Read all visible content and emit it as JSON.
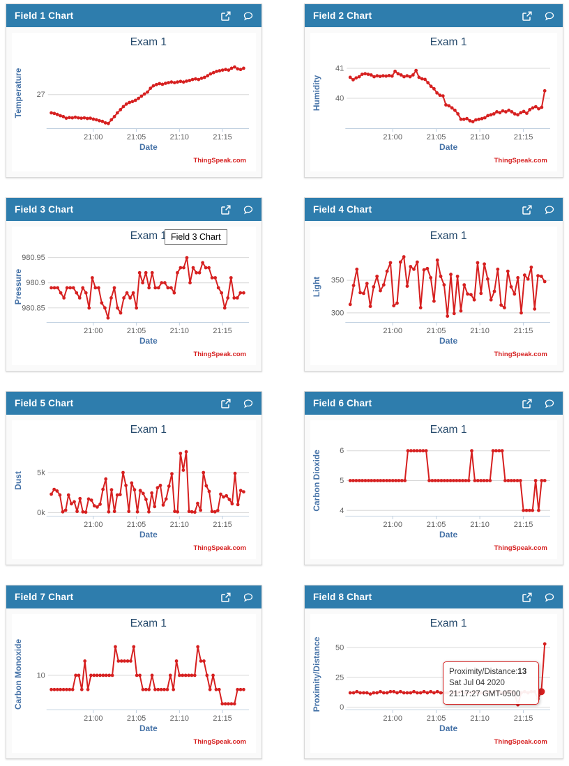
{
  "colors": {
    "header_blue": "#2e7dad",
    "series_red": "#d62020",
    "chart_title_navy": "#25496b",
    "axis_label_blue": "#4572a7",
    "tick_gray": "#606060",
    "gridline_gray": "#d8d8d8",
    "axis_line": "#c0d0e0"
  },
  "cards": [
    {
      "title": "Field 1 Chart",
      "icons": [
        "external-link-icon",
        "comment-icon"
      ]
    },
    {
      "title": "Field 2 Chart",
      "icons": [
        "external-link-icon",
        "comment-icon"
      ]
    },
    {
      "title": "Field 3 Chart",
      "icons": [
        "external-link-icon",
        "comment-icon"
      ],
      "hover_tooltip": {
        "type": "native",
        "text": "Field 3 Chart"
      }
    },
    {
      "title": "Field 4 Chart",
      "icons": [
        "external-link-icon",
        "comment-icon"
      ]
    },
    {
      "title": "Field 5 Chart",
      "icons": [
        "external-link-icon",
        "comment-icon"
      ]
    },
    {
      "title": "Field 6 Chart",
      "icons": [
        "external-link-icon",
        "comment-icon"
      ]
    },
    {
      "title": "Field 7 Chart",
      "icons": [
        "external-link-icon",
        "comment-icon"
      ]
    },
    {
      "title": "Field 8 Chart",
      "icons": [
        "external-link-icon",
        "comment-icon"
      ],
      "hover_tooltip": {
        "type": "point",
        "label": "Proximity/Distance:",
        "value": "13",
        "date_line": "Sat Jul 04 2020",
        "time_line": "21:17:27 GMT-0500"
      }
    }
  ],
  "chart_data": [
    {
      "type": "line",
      "title": "Exam 1",
      "ylabel": "Temperature",
      "xlabel": "Date",
      "credits": "ThingSpeak.com",
      "series_color": "#d62020",
      "legend": false,
      "grid": true,
      "xlim": [
        -4.95,
        17.75
      ],
      "x_start": -4.88,
      "x_end": 17.45,
      "x_unit": "minutes from 21:00",
      "xticks": [
        {
          "v": 0,
          "label": "21:00"
        },
        {
          "v": 5,
          "label": "21:05"
        },
        {
          "v": 10,
          "label": "21:10"
        },
        {
          "v": 15,
          "label": "21:15"
        }
      ],
      "ylim": [
        25.93,
        28.17
      ],
      "yticks": [
        {
          "v": 27,
          "label": "27"
        }
      ],
      "values": [
        26.42,
        26.4,
        26.37,
        26.33,
        26.3,
        26.25,
        26.27,
        26.26,
        26.28,
        26.26,
        26.25,
        26.26,
        26.24,
        26.25,
        26.22,
        26.2,
        26.17,
        26.15,
        26.1,
        26.08,
        26.2,
        26.3,
        26.42,
        26.52,
        26.62,
        26.7,
        26.75,
        26.78,
        26.82,
        26.88,
        26.95,
        27.02,
        27.08,
        27.2,
        27.28,
        27.32,
        27.35,
        27.33,
        27.36,
        27.38,
        27.4,
        27.38,
        27.4,
        27.42,
        27.4,
        27.43,
        27.45,
        27.48,
        27.5,
        27.48,
        27.52,
        27.55,
        27.6,
        27.66,
        27.7,
        27.74,
        27.76,
        27.78,
        27.8,
        27.78,
        27.84,
        27.88,
        27.82,
        27.8,
        27.84
      ]
    },
    {
      "type": "line",
      "title": "Exam 1",
      "ylabel": "Humidity",
      "xlabel": "Date",
      "credits": "ThingSpeak.com",
      "series_color": "#d62020",
      "legend": false,
      "grid": true,
      "xlim": [
        -4.95,
        17.75
      ],
      "x_start": -4.88,
      "x_end": 17.45,
      "x_unit": "minutes from 21:00",
      "xticks": [
        {
          "v": 0,
          "label": "21:00"
        },
        {
          "v": 5,
          "label": "21:05"
        },
        {
          "v": 10,
          "label": "21:10"
        },
        {
          "v": 15,
          "label": "21:15"
        }
      ],
      "ylim": [
        39.0,
        41.35
      ],
      "yticks": [
        {
          "v": 40,
          "label": "40"
        },
        {
          "v": 41,
          "label": "41"
        }
      ],
      "values": [
        40.7,
        40.62,
        40.68,
        40.72,
        40.8,
        40.82,
        40.8,
        40.78,
        40.72,
        40.75,
        40.73,
        40.75,
        40.74,
        40.76,
        40.74,
        40.9,
        40.82,
        40.78,
        40.72,
        40.75,
        40.72,
        40.78,
        40.93,
        40.7,
        40.65,
        40.63,
        40.52,
        40.4,
        40.32,
        40.18,
        40.1,
        40.08,
        39.78,
        39.75,
        39.68,
        39.6,
        39.48,
        39.3,
        39.3,
        39.32,
        39.25,
        39.22,
        39.28,
        39.3,
        39.32,
        39.35,
        39.42,
        39.45,
        39.48,
        39.55,
        39.52,
        39.58,
        39.55,
        39.6,
        39.55,
        39.48,
        39.45,
        39.52,
        39.56,
        39.5,
        39.62,
        39.68,
        39.72,
        39.65,
        39.7,
        40.25
      ]
    },
    {
      "type": "line",
      "title": "Exam 1",
      "ylabel": "Pressure",
      "xlabel": "Date",
      "credits": "ThingSpeak.com",
      "series_color": "#d62020",
      "legend": false,
      "grid": true,
      "xlim": [
        -4.95,
        17.75
      ],
      "x_start": -4.88,
      "x_end": 17.45,
      "x_unit": "minutes from 21:00",
      "xticks": [
        {
          "v": 0,
          "label": "21:00"
        },
        {
          "v": 5,
          "label": "21:05"
        },
        {
          "v": 10,
          "label": "21:10"
        },
        {
          "v": 15,
          "label": "21:15"
        }
      ],
      "ylim": [
        980.822,
        980.962
      ],
      "yticks": [
        {
          "v": 980.85,
          "label": "980.85"
        },
        {
          "v": 980.9,
          "label": "980.9"
        },
        {
          "v": 980.95,
          "label": "980.95"
        }
      ],
      "values": [
        980.89,
        980.89,
        980.89,
        980.88,
        980.87,
        980.89,
        980.89,
        980.89,
        980.88,
        980.87,
        980.89,
        980.88,
        980.85,
        980.91,
        980.89,
        980.89,
        980.86,
        980.85,
        980.83,
        980.87,
        980.89,
        980.85,
        980.84,
        980.87,
        980.88,
        980.87,
        980.88,
        980.85,
        980.92,
        980.9,
        980.92,
        980.89,
        980.92,
        980.89,
        980.89,
        980.9,
        980.9,
        980.89,
        980.89,
        980.88,
        980.92,
        980.93,
        980.93,
        980.95,
        980.9,
        980.93,
        980.92,
        980.92,
        980.94,
        980.93,
        980.93,
        980.91,
        980.91,
        980.89,
        980.88,
        980.85,
        980.87,
        980.91,
        980.87,
        980.87,
        980.88,
        980.88
      ]
    },
    {
      "type": "line",
      "title": "Exam 1",
      "ylabel": "Light",
      "xlabel": "Date",
      "credits": "ThingSpeak.com",
      "series_color": "#d62020",
      "legend": false,
      "grid": true,
      "xlim": [
        -4.95,
        17.75
      ],
      "x_start": -4.88,
      "x_end": 17.45,
      "x_unit": "minutes from 21:00",
      "xticks": [
        {
          "v": 0,
          "label": "21:00"
        },
        {
          "v": 5,
          "label": "21:05"
        },
        {
          "v": 10,
          "label": "21:10"
        },
        {
          "v": 15,
          "label": "21:15"
        }
      ],
      "ylim": [
        286,
        394
      ],
      "yticks": [
        {
          "v": 300,
          "label": "300"
        },
        {
          "v": 350,
          "label": "350"
        }
      ],
      "values": [
        313,
        342,
        367,
        331,
        330,
        345,
        310,
        340,
        356,
        334,
        343,
        364,
        377,
        311,
        315,
        378,
        386,
        341,
        371,
        367,
        378,
        308,
        366,
        368,
        354,
        318,
        381,
        356,
        343,
        295,
        359,
        299,
        356,
        303,
        343,
        329,
        328,
        320,
        377,
        330,
        375,
        352,
        320,
        333,
        367,
        312,
        308,
        364,
        340,
        329,
        354,
        300,
        358,
        352,
        370,
        306,
        357,
        356,
        348
      ]
    },
    {
      "type": "line",
      "title": "Exam 1",
      "ylabel": "Dust",
      "xlabel": "Date",
      "credits": "ThingSpeak.com",
      "series_color": "#d62020",
      "legend": false,
      "grid": true,
      "xlim": [
        -4.95,
        17.75
      ],
      "x_start": -4.88,
      "x_end": 17.45,
      "x_unit": "minutes from 21:00",
      "xticks": [
        {
          "v": 0,
          "label": "21:00"
        },
        {
          "v": 5,
          "label": "21:05"
        },
        {
          "v": 10,
          "label": "21:10"
        },
        {
          "v": 15,
          "label": "21:15"
        }
      ],
      "ylim": [
        -400,
        8400
      ],
      "yticks": [
        {
          "v": 0,
          "label": "0k"
        },
        {
          "v": 5000,
          "label": "5k"
        }
      ],
      "values": [
        2300,
        2900,
        2700,
        2200,
        100,
        300,
        2200,
        1100,
        1350,
        150,
        1750,
        100,
        50,
        1700,
        1550,
        850,
        700,
        1050,
        2900,
        4200,
        100,
        2850,
        150,
        2200,
        2250,
        5000,
        3400,
        150,
        3700,
        2850,
        100,
        2750,
        2400,
        1650,
        100,
        2450,
        750,
        3100,
        3400,
        950,
        1700,
        3300,
        4850,
        150,
        100,
        7400,
        5300,
        7600,
        150,
        100,
        50,
        1150,
        300,
        5000,
        3350,
        2650,
        150,
        100,
        250,
        2300,
        1950,
        2100,
        1650,
        1100,
        4900,
        1000,
        2750,
        2600
      ]
    },
    {
      "type": "line",
      "title": "Exam 1",
      "ylabel": "Carbon Dioxide",
      "xlabel": "Date",
      "credits": "ThingSpeak.com",
      "series_color": "#d62020",
      "legend": false,
      "grid": true,
      "xlim": [
        -4.95,
        17.75
      ],
      "x_start": -4.88,
      "x_end": 17.45,
      "x_unit": "minutes from 21:00",
      "xticks": [
        {
          "v": 0,
          "label": "21:00"
        },
        {
          "v": 5,
          "label": "21:05"
        },
        {
          "v": 10,
          "label": "21:10"
        },
        {
          "v": 15,
          "label": "21:15"
        }
      ],
      "ylim": [
        3.82,
        6.18
      ],
      "yticks": [
        {
          "v": 4,
          "label": "4"
        },
        {
          "v": 5,
          "label": "5"
        },
        {
          "v": 6,
          "label": "6"
        }
      ],
      "values": [
        5,
        5,
        5,
        5,
        5,
        5,
        5,
        5,
        5,
        5,
        5,
        5,
        5,
        5,
        5,
        5,
        5,
        5,
        5,
        6,
        6,
        6,
        6,
        6,
        6,
        6,
        5,
        5,
        5,
        5,
        5,
        5,
        5,
        5,
        5,
        5,
        5,
        5,
        5,
        5,
        6,
        5,
        5,
        5,
        5,
        5,
        5,
        6,
        6,
        6,
        6,
        5,
        5,
        5,
        5,
        5,
        5,
        4,
        4,
        4,
        4,
        5,
        4,
        5,
        5
      ]
    },
    {
      "type": "line",
      "title": "Exam 1",
      "ylabel": "Carbon Monoxide",
      "xlabel": "Date",
      "credits": "ThingSpeak.com",
      "series_color": "#d62020",
      "legend": false,
      "grid": true,
      "xlim": [
        -4.95,
        17.75
      ],
      "x_start": -4.88,
      "x_end": 17.45,
      "x_unit": "minutes from 21:00",
      "xticks": [
        {
          "v": 0,
          "label": "21:00"
        },
        {
          "v": 5,
          "label": "21:05"
        },
        {
          "v": 10,
          "label": "21:10"
        },
        {
          "v": 15,
          "label": "21:15"
        }
      ],
      "ylim": [
        2.8,
        17.6
      ],
      "yticks": [
        {
          "v": 10,
          "label": "10"
        }
      ],
      "values": [
        7,
        7,
        7,
        7,
        7,
        7,
        7,
        7,
        10,
        10,
        7,
        13,
        7,
        10,
        10,
        10,
        10,
        10,
        10,
        10,
        10,
        16,
        13,
        13,
        13,
        13,
        13,
        16,
        10,
        10,
        7,
        7,
        7,
        10,
        7,
        7,
        7,
        7,
        7,
        10,
        7,
        13,
        10,
        10,
        10,
        10,
        10,
        10,
        16,
        13,
        13,
        10,
        7,
        10,
        7,
        7,
        4,
        4,
        4,
        4,
        4,
        7,
        7,
        7
      ]
    },
    {
      "type": "line",
      "title": "Exam 1",
      "ylabel": "Proximity/Distance",
      "xlabel": "Date",
      "credits": "ThingSpeak.com",
      "series_color": "#d62020",
      "legend": false,
      "grid": true,
      "highlight_index": 57,
      "xlim": [
        -4.95,
        17.75
      ],
      "x_start": -4.88,
      "x_end": 17.45,
      "x_unit": "minutes from 21:00",
      "xticks": [
        {
          "v": 0,
          "label": "21:00"
        },
        {
          "v": 5,
          "label": "21:05"
        },
        {
          "v": 10,
          "label": "21:10"
        },
        {
          "v": 15,
          "label": "21:15"
        }
      ],
      "ylim": [
        -2,
        57
      ],
      "yticks": [
        {
          "v": 0,
          "label": "0"
        },
        {
          "v": 25,
          "label": "25"
        },
        {
          "v": 50,
          "label": "50"
        }
      ],
      "values": [
        12,
        12,
        13,
        12,
        12,
        12,
        11,
        12,
        12,
        13,
        12,
        12,
        13,
        13,
        12,
        13,
        12,
        12,
        12,
        13,
        12,
        12,
        13,
        12,
        13,
        12,
        13,
        12,
        12,
        12,
        13,
        12,
        12,
        13,
        12,
        12,
        12,
        13,
        12,
        12,
        12,
        13,
        12,
        13,
        13,
        12,
        12,
        13,
        13,
        12,
        2,
        12,
        13,
        12,
        13,
        13,
        7,
        13,
        53
      ]
    }
  ]
}
